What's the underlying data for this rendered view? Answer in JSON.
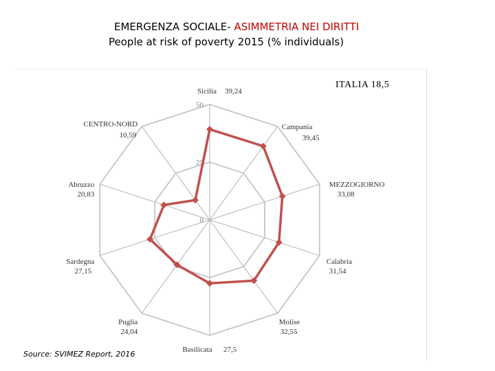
{
  "header": {
    "title_part1": "EMERGENZA SOCIALE- ",
    "title_part2": "ASIMMETRIA NEI DIRITTI",
    "subtitle": "People at risk of poverty 2015 (% individuals)"
  },
  "chart_data": {
    "type": "radar",
    "annotation": "ITALIA  18,5",
    "rlim": [
      0,
      50
    ],
    "ticks": [
      {
        "value": 0,
        "label": "0"
      },
      {
        "value": 25,
        "label": "25"
      },
      {
        "value": 50,
        "label": "50"
      }
    ],
    "categories": [
      {
        "name": "Sicilia",
        "value": 39.24,
        "label": "39,24"
      },
      {
        "name": "Campania",
        "value": 39.45,
        "label": "39,45"
      },
      {
        "name": "MEZZOGIORNO",
        "value": 33.08,
        "label": "33,08"
      },
      {
        "name": "Calabria",
        "value": 31.54,
        "label": "31,54"
      },
      {
        "name": "Molise",
        "value": 32.55,
        "label": "32,55"
      },
      {
        "name": "Basilicata",
        "value": 27.5,
        "label": "27,5"
      },
      {
        "name": "Puglia",
        "value": 24.04,
        "label": "24,04"
      },
      {
        "name": "Sardegna",
        "value": 27.15,
        "label": "27,15"
      },
      {
        "name": "Abruzzo",
        "value": 20.83,
        "label": "20,83"
      },
      {
        "name": "CENTRO-NORD",
        "value": 10.59,
        "label": "10,59"
      }
    ],
    "series_color": "#c0504d",
    "grid_color": "#bfbfbf",
    "tick_color": "#808080"
  },
  "footer": {
    "source": "Source: SVIMEZ Report, 2016"
  }
}
